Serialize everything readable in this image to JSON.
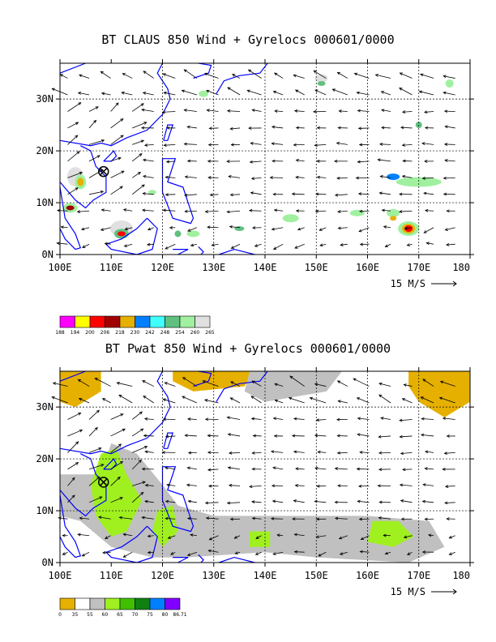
{
  "panels": [
    {
      "id": "claus",
      "title": "BT CLAUS 850 Wind + Gyrelocs 000601/0000",
      "scale_label": "15 M/S",
      "colorbar": {
        "labels": [
          "188",
          "194",
          "200",
          "206",
          "218",
          "230",
          "242",
          "248",
          "254",
          "260",
          "265"
        ],
        "colors": [
          "#ff00ff",
          "#ffff00",
          "#ff0000",
          "#a00000",
          "#e6b000",
          "#0080ff",
          "#40ffff",
          "#60c080",
          "#a0f0a0",
          "#e0e0e0"
        ]
      }
    },
    {
      "id": "pwat",
      "title": "BT Pwat 850 Wind + Gyrelocs 000601/0000",
      "scale_label": "15 M/S",
      "colorbar": {
        "labels": [
          "0",
          "35",
          "55",
          "60",
          "65",
          "70",
          "75",
          "80",
          "86.71"
        ],
        "colors": [
          "#e6b000",
          "#ffffff",
          "#c0c0c0",
          "#a0f020",
          "#40c000",
          "#108010",
          "#0080ff",
          "#8000ff"
        ]
      }
    }
  ],
  "axes": {
    "x_labels": [
      "100E",
      "110E",
      "120E",
      "130E",
      "140E",
      "150E",
      "160E",
      "170E",
      "180"
    ],
    "y_labels": [
      "0N",
      "10N",
      "20N",
      "30N"
    ]
  },
  "colors": {
    "coastline": "#0000ff",
    "arrow": "#000000",
    "grid": "#000000"
  }
}
